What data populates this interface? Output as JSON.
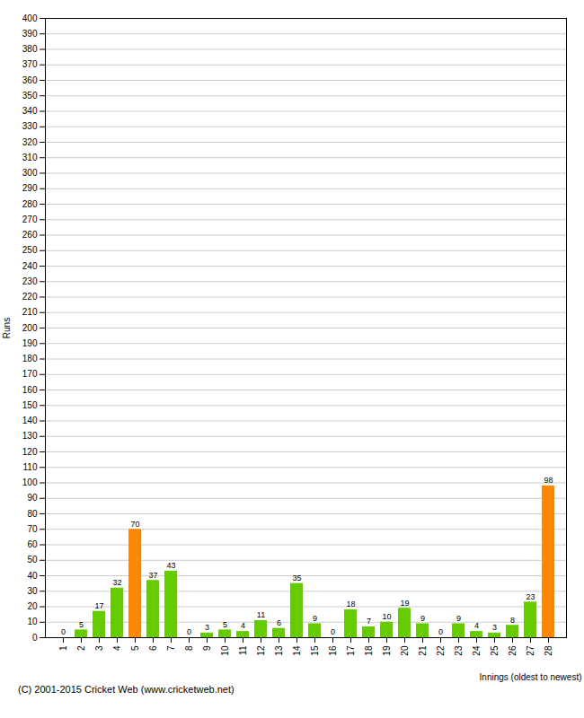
{
  "chart_data": {
    "type": "bar",
    "categories": [
      "1",
      "2",
      "3",
      "4",
      "5",
      "6",
      "7",
      "8",
      "9",
      "10",
      "11",
      "12",
      "13",
      "14",
      "15",
      "16",
      "17",
      "18",
      "19",
      "20",
      "21",
      "22",
      "23",
      "24",
      "25",
      "26",
      "27",
      "28"
    ],
    "values": [
      0,
      5,
      17,
      32,
      70,
      37,
      43,
      0,
      3,
      5,
      4,
      11,
      6,
      35,
      9,
      0,
      18,
      7,
      10,
      19,
      9,
      0,
      9,
      4,
      3,
      8,
      23,
      98
    ],
    "colors": [
      "#66cc00",
      "#66cc00",
      "#66cc00",
      "#66cc00",
      "#ff8800",
      "#66cc00",
      "#66cc00",
      "#66cc00",
      "#66cc00",
      "#66cc00",
      "#66cc00",
      "#66cc00",
      "#66cc00",
      "#66cc00",
      "#66cc00",
      "#66cc00",
      "#66cc00",
      "#66cc00",
      "#66cc00",
      "#66cc00",
      "#66cc00",
      "#66cc00",
      "#66cc00",
      "#66cc00",
      "#66cc00",
      "#66cc00",
      "#66cc00",
      "#ff8800"
    ],
    "xlabel": "Innings (oldest to newest)",
    "ylabel": "Runs",
    "ylim": [
      0,
      400
    ],
    "yticks": [
      0,
      10,
      20,
      30,
      40,
      50,
      60,
      70,
      80,
      90,
      100,
      110,
      120,
      130,
      140,
      150,
      160,
      170,
      180,
      190,
      200,
      210,
      220,
      230,
      240,
      250,
      260,
      270,
      280,
      290,
      300,
      310,
      320,
      330,
      340,
      350,
      360,
      370,
      380,
      390,
      400
    ],
    "grid": true,
    "data_labels": true,
    "caption": "(C) 2001-2015 Cricket Web (www.cricketweb.net)"
  }
}
